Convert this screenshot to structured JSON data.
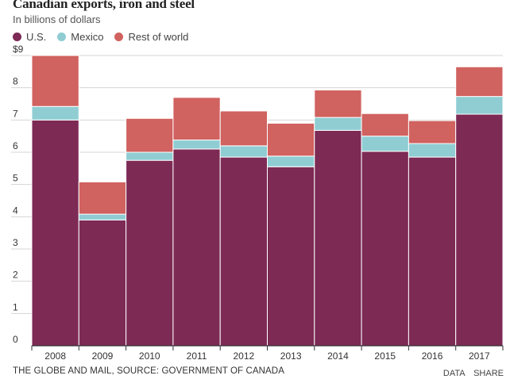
{
  "header": {
    "title": "Canadian exports, iron and steel",
    "subtitle": "In billions of dollars"
  },
  "legend": [
    {
      "name": "U.S.",
      "color": "#7d2a55"
    },
    {
      "name": "Mexico",
      "color": "#8fcdd3"
    },
    {
      "name": "Rest of world",
      "color": "#d0625f"
    }
  ],
  "footer": {
    "source": "THE GLOBE AND MAIL, SOURCE: GOVERNMENT OF CANADA",
    "data_label": "DATA",
    "share_label": "SHARE"
  },
  "chart_data": {
    "type": "bar",
    "stacked": true,
    "title": "Canadian exports, iron and steel",
    "subtitle": "In billions of dollars",
    "xlabel": "",
    "ylabel": "",
    "ylim": [
      0,
      9
    ],
    "yticks": [
      0,
      1,
      2,
      3,
      4,
      5,
      6,
      7,
      8,
      9
    ],
    "ytick_labels": [
      "0",
      "1",
      "2",
      "3",
      "4",
      "5",
      "6",
      "7",
      "8",
      "$9"
    ],
    "categories": [
      "2008",
      "2009",
      "2010",
      "2011",
      "2012",
      "2013",
      "2014",
      "2015",
      "2016",
      "2017"
    ],
    "series": [
      {
        "name": "U.S.",
        "color": "#7d2a55",
        "values": [
          7.0,
          3.9,
          5.75,
          6.1,
          5.85,
          5.55,
          6.68,
          6.03,
          5.85,
          7.18
        ]
      },
      {
        "name": "Mexico",
        "color": "#8fcdd3",
        "values": [
          0.42,
          0.18,
          0.25,
          0.28,
          0.35,
          0.33,
          0.4,
          0.47,
          0.42,
          0.55
        ]
      },
      {
        "name": "Rest of world",
        "color": "#d0625f",
        "values": [
          1.58,
          1.0,
          1.05,
          1.32,
          1.08,
          1.02,
          0.85,
          0.7,
          0.71,
          0.92
        ]
      }
    ],
    "grid": true,
    "legend_position": "top-left"
  }
}
